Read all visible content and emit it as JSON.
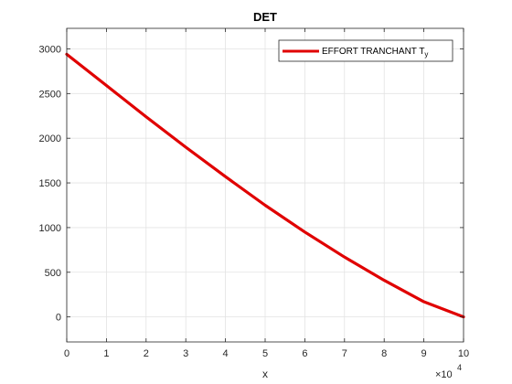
{
  "chart_data": {
    "type": "line",
    "title": "DET",
    "xlabel": "x",
    "ylabel": "",
    "x_exponent_base": "×10",
    "x_exponent_power": "4",
    "xlim": [
      0,
      100000
    ],
    "ylim": [
      -280,
      3230
    ],
    "xticks": [
      0,
      10000,
      20000,
      30000,
      40000,
      50000,
      60000,
      70000,
      80000,
      90000,
      100000
    ],
    "xtick_labels": [
      "0",
      "1",
      "2",
      "3",
      "4",
      "5",
      "6",
      "7",
      "8",
      "9",
      "10"
    ],
    "yticks": [
      0,
      500,
      1000,
      1500,
      2000,
      2500,
      3000
    ],
    "ytick_labels": [
      "0",
      "500",
      "1000",
      "1500",
      "2000",
      "2500",
      "3000"
    ],
    "grid": true,
    "legend_position": "top-right",
    "series": [
      {
        "name": "EFFORT TRANCHANT T",
        "name_subscript": "y",
        "color": "#e00000",
        "x": [
          0,
          10000,
          20000,
          30000,
          40000,
          50000,
          60000,
          70000,
          80000,
          90000,
          100000
        ],
        "y": [
          2940,
          2590,
          2240,
          1900,
          1570,
          1250,
          950,
          670,
          410,
          170,
          0
        ]
      }
    ]
  }
}
